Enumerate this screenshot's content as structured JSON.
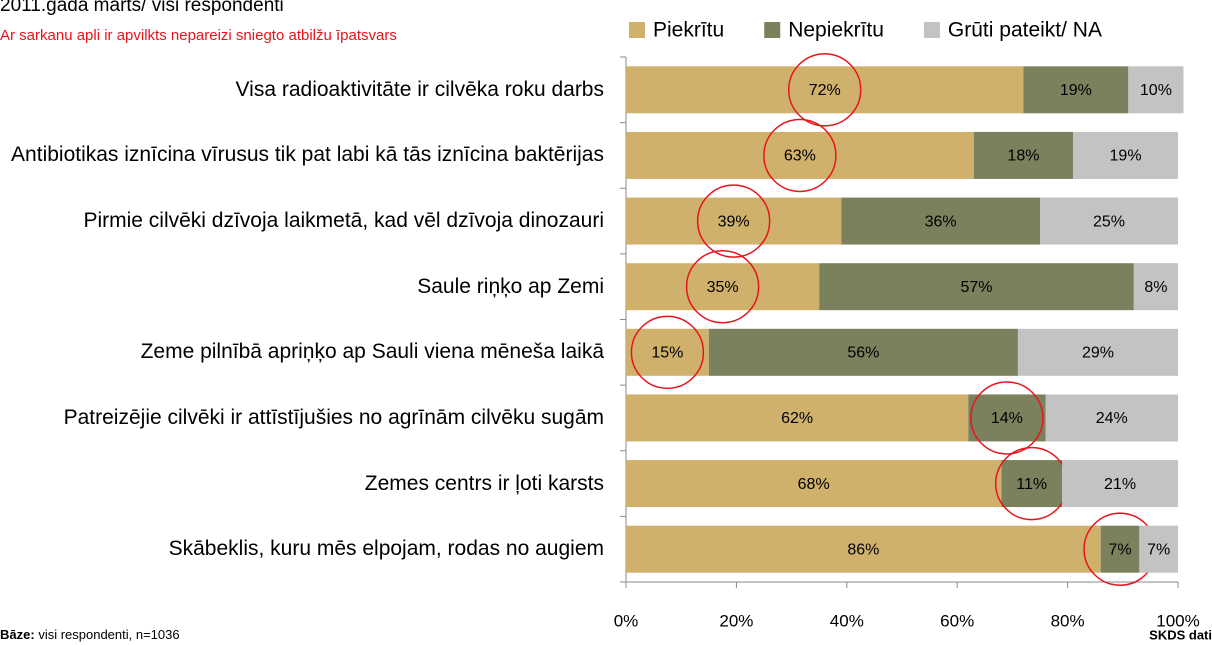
{
  "chart_data": {
    "type": "stacked_barh",
    "title": "2011.gada marts/ visi respondenti",
    "subtitle": "Ar sarkanu apli ir apvilkts nepareizi sniegto atbilžu īpatsvars",
    "categories": [
      "Visa radioaktivitāte ir cilvēka roku darbs",
      "Antibiotikas iznīcina vīrusus tik pat labi kā tās iznīcina baktērijas",
      "Pirmie cilvēki dzīvoja laikmetā, kad vēl dzīvoja dinozauri",
      "Saule riņķo ap Zemi",
      "Zeme pilnībā apriņķo ap Sauli viena mēneša laikā",
      "Patreizējie cilvēki ir attīstījušies no agrīnām cilvēku sugām",
      "Zemes centrs ir ļoti karsts",
      "Skābeklis, kuru mēs elpojam, rodas no augiem"
    ],
    "series": [
      {
        "name": "Piekrītu",
        "color": "#cfb16c",
        "values": [
          72,
          63,
          39,
          35,
          15,
          62,
          68,
          86
        ],
        "value_labels": [
          "72%",
          "63%",
          "39%",
          "35%",
          "15%",
          "62%",
          "68%",
          "86%"
        ]
      },
      {
        "name": "Nepiekrītu",
        "color": "#7b805d",
        "values": [
          19,
          18,
          36,
          57,
          56,
          14,
          11,
          7
        ],
        "value_labels": [
          "19%",
          "18%",
          "36%",
          "57%",
          "56%",
          "14%",
          "11%",
          "7%"
        ]
      },
      {
        "name": "Grūti pateikt/ NA",
        "color": "#c3c3c3",
        "values": [
          10,
          19,
          25,
          8,
          29,
          24,
          21,
          7
        ],
        "value_labels": [
          "10%",
          "19%",
          "25%",
          "8%",
          "29%",
          "24%",
          "21%",
          "7%"
        ]
      }
    ],
    "highlight_series": [
      0,
      0,
      0,
      0,
      0,
      1,
      1,
      1
    ],
    "highlight_color": "#e8141c",
    "xlim": [
      0,
      100
    ],
    "xticks": [
      {
        "value": 0,
        "label": "0%"
      },
      {
        "value": 20,
        "label": "20%"
      },
      {
        "value": 40,
        "label": "40%"
      },
      {
        "value": 60,
        "label": "60%"
      },
      {
        "value": 80,
        "label": "80%"
      },
      {
        "value": 100,
        "label": "100%"
      }
    ],
    "legend": "top",
    "base_label": "Bāze:",
    "base_text": "visi respondenti, n=1036",
    "source": "SKDS dati"
  }
}
